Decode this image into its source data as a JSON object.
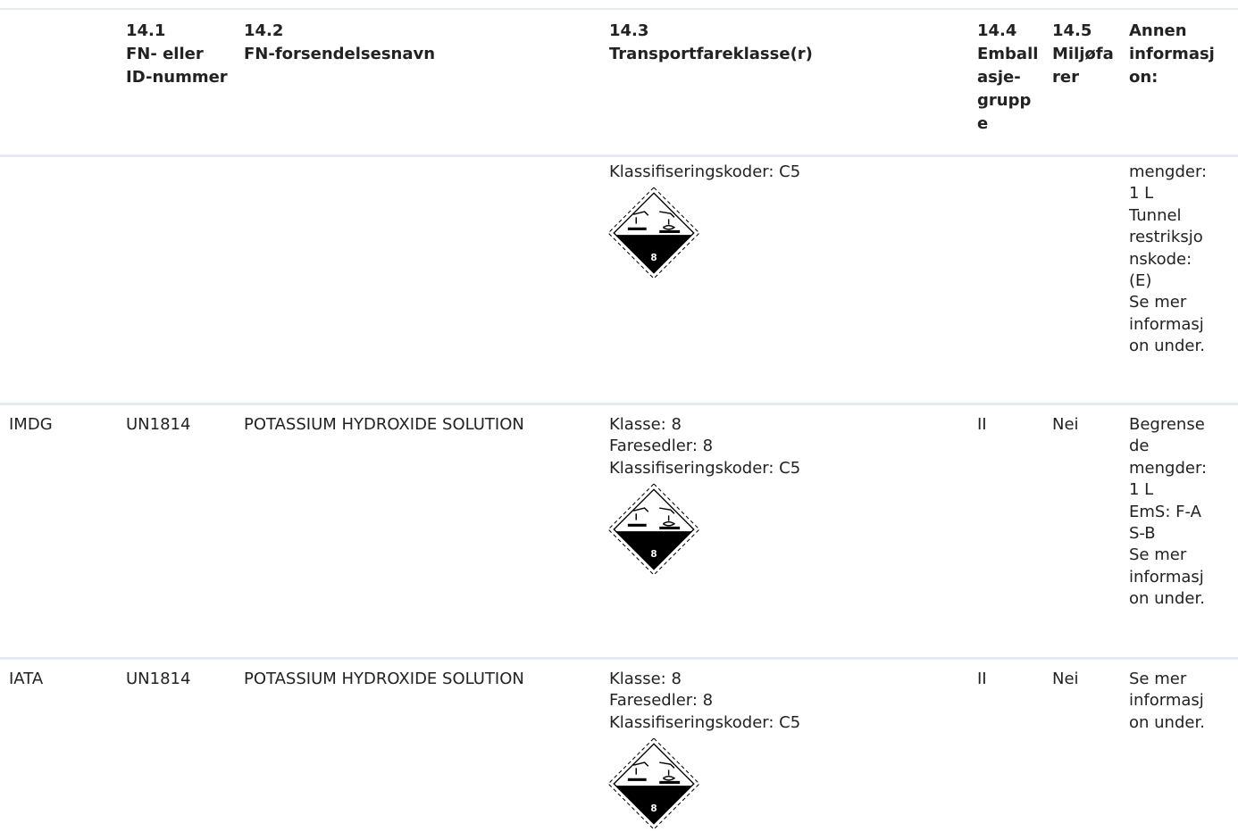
{
  "header": {
    "col_141_num": "14.1",
    "col_141_label": [
      "FN- eller",
      "ID-nummer"
    ],
    "col_142_num": "14.2",
    "col_142_label": "FN-forsendelsesnavn",
    "col_143_num": "14.3",
    "col_143_label": "Transportfareklasse(r)",
    "col_144_num": "14.4",
    "col_144_label": [
      "Emball",
      "asje-",
      "grupp",
      "e"
    ],
    "col_145_num": "14.5",
    "col_145_label": [
      "Miljøfa",
      "rer"
    ],
    "col_other_label": [
      "Annen",
      "informasj",
      "on:"
    ]
  },
  "rows": [
    {
      "mode": "",
      "un_number": "",
      "shipping_name": "",
      "hazard_lines": [
        "Klassifiseringskoder: C5"
      ],
      "placard_number": "8",
      "packing_group": "",
      "environmental": "",
      "other_lines": [
        "mengder:",
        "1 L",
        "Tunnel",
        "restriksjo",
        "nskode:",
        "(E)",
        "Se mer",
        "informasj",
        "on under."
      ]
    },
    {
      "mode": "IMDG",
      "un_number": "UN1814",
      "shipping_name": "POTASSIUM HYDROXIDE SOLUTION",
      "hazard_lines": [
        "Klasse: 8",
        "Faresedler: 8",
        "Klassifiseringskoder: C5"
      ],
      "placard_number": "8",
      "packing_group": "II",
      "environmental": "Nei",
      "other_lines": [
        "Begrense",
        "de",
        "mengder:",
        "1 L",
        "EmS: F-A",
        "S-B",
        "Se mer",
        "informasj",
        "on under."
      ]
    },
    {
      "mode": "IATA",
      "un_number": "UN1814",
      "shipping_name": "POTASSIUM HYDROXIDE SOLUTION",
      "hazard_lines": [
        "Klasse: 8",
        "Faresedler: 8",
        "Klassifiseringskoder: C5"
      ],
      "placard_number": "8",
      "packing_group": "II",
      "environmental": "Nei",
      "other_lines": [
        "Se mer",
        "informasj",
        "on under."
      ]
    }
  ],
  "colors": {
    "rule": "#e6ebf2",
    "text": "#222222",
    "placard_dark": "#000000"
  },
  "icons": {
    "placard": "corrosive-hazard-diamond-icon"
  }
}
